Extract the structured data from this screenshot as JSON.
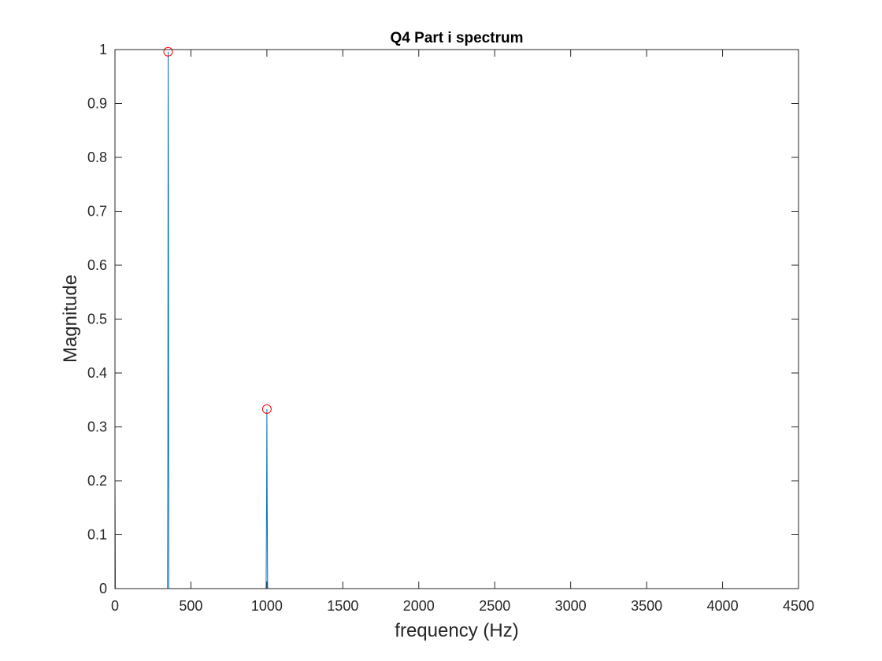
{
  "chart_data": {
    "type": "line",
    "title": "Q4 Part i spectrum",
    "xlabel": "frequency (Hz)",
    "ylabel": "Magnitude",
    "xlim": [
      0,
      4500
    ],
    "ylim": [
      0,
      1
    ],
    "grid": false,
    "x_ticks": [
      0,
      500,
      1000,
      1500,
      2000,
      2500,
      3000,
      3500,
      4000,
      4500
    ],
    "x_tick_labels": [
      "0",
      "500",
      "1000",
      "1500",
      "2000",
      "2500",
      "3000",
      "3500",
      "4000",
      "4500"
    ],
    "y_ticks": [
      0,
      0.1,
      0.2,
      0.3,
      0.4,
      0.5,
      0.6,
      0.7,
      0.8,
      0.9,
      1
    ],
    "y_tick_labels": [
      "0",
      "0.1",
      "0.2",
      "0.3",
      "0.4",
      "0.5",
      "0.6",
      "0.7",
      "0.8",
      "0.9",
      "1"
    ],
    "series": [
      {
        "color": "#0072BD",
        "style": "line",
        "x": [
          0,
          0,
          3,
          346,
          348,
          350,
          352,
          354,
          995,
          998,
          1000,
          1002,
          1005,
          4096
        ],
        "y": [
          0,
          0.2,
          0,
          0,
          0.24,
          0.996,
          0.76,
          0,
          0,
          0.16,
          0.333,
          0.16,
          0,
          0
        ]
      },
      {
        "color": "#FF0000",
        "style": "marker",
        "marker": "circle",
        "x": [
          350,
          1000
        ],
        "y": [
          0.996,
          0.333
        ]
      }
    ]
  }
}
